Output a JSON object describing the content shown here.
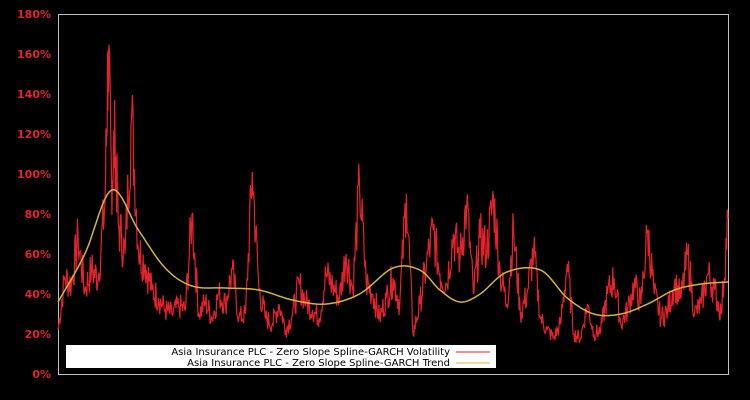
{
  "chart_data": {
    "type": "line",
    "title": "",
    "xlabel": "",
    "ylabel": "",
    "ylim": [
      0,
      180
    ],
    "y_unit": "%",
    "y_ticks": [
      "0%",
      "20%",
      "40%",
      "60%",
      "80%",
      "100%",
      "120%",
      "140%",
      "160%",
      "180%"
    ],
    "x_ticks": [],
    "grid": false,
    "legend_position": "lower-left",
    "colors": {
      "background": "#000000",
      "plot_border": "#c0c0c0",
      "tick_label": "#e3232c",
      "volatility": "#e3232c",
      "trend": "#d4b43c",
      "legend_bg": "#ffffff"
    },
    "series": [
      {
        "name": "Asia Insurance PLC - Zero Slope Spline-GARCH Volatility",
        "color": "#e3232c",
        "x_frac": [
          0.0,
          0.01,
          0.02,
          0.03,
          0.04,
          0.05,
          0.06,
          0.07,
          0.075,
          0.08,
          0.085,
          0.09,
          0.1,
          0.11,
          0.12,
          0.13,
          0.14,
          0.15,
          0.16,
          0.17,
          0.18,
          0.19,
          0.2,
          0.21,
          0.22,
          0.23,
          0.24,
          0.25,
          0.26,
          0.27,
          0.28,
          0.29,
          0.3,
          0.31,
          0.32,
          0.33,
          0.34,
          0.35,
          0.36,
          0.37,
          0.38,
          0.39,
          0.4,
          0.41,
          0.42,
          0.43,
          0.44,
          0.45,
          0.46,
          0.47,
          0.48,
          0.49,
          0.5,
          0.51,
          0.52,
          0.53,
          0.54,
          0.55,
          0.56,
          0.57,
          0.58,
          0.59,
          0.6,
          0.61,
          0.62,
          0.63,
          0.64,
          0.65,
          0.66,
          0.67,
          0.68,
          0.69,
          0.7,
          0.71,
          0.72,
          0.73,
          0.74,
          0.75,
          0.76,
          0.77,
          0.78,
          0.79,
          0.8,
          0.81,
          0.82,
          0.83,
          0.84,
          0.85,
          0.86,
          0.87,
          0.88,
          0.89,
          0.9,
          0.91,
          0.92,
          0.93,
          0.94,
          0.95,
          0.96,
          0.97,
          0.98,
          0.99,
          1.0
        ],
        "values": [
          22,
          48,
          45,
          68,
          42,
          52,
          48,
          85,
          162,
          96,
          118,
          75,
          60,
          130,
          62,
          55,
          42,
          38,
          32,
          30,
          34,
          32,
          80,
          30,
          36,
          28,
          40,
          35,
          52,
          28,
          30,
          101,
          42,
          28,
          25,
          35,
          22,
          30,
          45,
          36,
          32,
          28,
          50,
          44,
          38,
          60,
          42,
          95,
          46,
          40,
          28,
          38,
          48,
          35,
          90,
          20,
          35,
          55,
          72,
          50,
          45,
          70,
          58,
          85,
          40,
          68,
          62,
          88,
          50,
          35,
          72,
          30,
          40,
          62,
          28,
          22,
          18,
          25,
          55,
          20,
          18,
          35,
          20,
          22,
          40,
          48,
          25,
          32,
          45,
          35,
          72,
          40,
          28,
          32,
          45,
          38,
          60,
          30,
          35,
          50,
          42,
          30,
          78
        ]
      },
      {
        "name": "Asia Insurance PLC - Zero Slope Spline-GARCH Trend",
        "color": "#d4b43c",
        "x_frac": [
          0.0,
          0.04,
          0.08,
          0.12,
          0.16,
          0.2,
          0.25,
          0.3,
          0.35,
          0.4,
          0.45,
          0.5,
          0.54,
          0.57,
          0.6,
          0.63,
          0.67,
          0.72,
          0.76,
          0.8,
          0.84,
          0.88,
          0.92,
          0.96,
          1.0
        ],
        "values": [
          36,
          60,
          92,
          72,
          53,
          44,
          43,
          42,
          37,
          35,
          40,
          53,
          52,
          42,
          36,
          40,
          51,
          52,
          38,
          30,
          30,
          35,
          42,
          45,
          46
        ]
      }
    ]
  },
  "legend": {
    "items": [
      {
        "label": "Asia Insurance PLC - Zero Slope Spline-GARCH Volatility",
        "color": "#e3232c"
      },
      {
        "label": "Asia Insurance PLC - Zero Slope Spline-GARCH Trend",
        "color": "#d4b43c"
      }
    ]
  }
}
